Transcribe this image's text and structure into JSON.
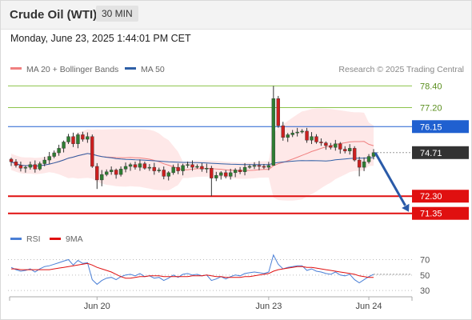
{
  "header": {
    "instrument": "Crude Oil (WTI)",
    "timeframe": "30 MIN",
    "datetime": "Monday, June 23, 2025 1:44:01 PM CET"
  },
  "colors": {
    "bull": "#2e7d32",
    "bear": "#cc1f1f",
    "ma20": "#f08080",
    "ma50": "#2e5fa6",
    "band_fill": "#fde0e0",
    "resistance": "#8bc34a",
    "pivot": "#2060d0",
    "support": "#e01010",
    "last_price": "#333333",
    "rsi": "#4a7fd6",
    "rsi_ma": "#e01010",
    "arrow": "#2a5aa8"
  },
  "chart_data": [
    {
      "type": "candlestick",
      "legend": [
        {
          "name": "MA 20 + Bollinger Bands",
          "color": "#f08080"
        },
        {
          "name": "MA 50",
          "color": "#2e5fa6"
        }
      ],
      "watermark": "Research © 2025 Trading Central",
      "ylim": [
        70.85,
        78.95
      ],
      "price_levels": [
        {
          "label": "78.40",
          "value": 78.4,
          "kind": "resistance"
        },
        {
          "label": "77.20",
          "value": 77.2,
          "kind": "resistance"
        },
        {
          "label": "76.15",
          "value": 76.15,
          "kind": "pivot"
        },
        {
          "label": "74.71",
          "value": 74.71,
          "kind": "last"
        },
        {
          "label": "72.30",
          "value": 72.3,
          "kind": "support"
        },
        {
          "label": "71.35",
          "value": 71.35,
          "kind": "support"
        }
      ],
      "x_ticks": [
        {
          "label": "Jun 20",
          "index": 18
        },
        {
          "label": "Jun 23",
          "index": 54
        },
        {
          "label": "Jun 24",
          "index": 75
        }
      ],
      "forecast": {
        "from_value": 74.71,
        "to_value": 71.35,
        "direction": "down"
      },
      "closes": [
        74.2,
        74.0,
        73.85,
        73.9,
        74.05,
        73.8,
        74.1,
        74.3,
        74.5,
        74.7,
        74.95,
        75.3,
        75.6,
        75.2,
        75.7,
        75.45,
        75.6,
        73.95,
        73.2,
        73.5,
        73.65,
        73.75,
        73.5,
        73.8,
        73.95,
        74.05,
        73.9,
        74.1,
        73.85,
        73.9,
        73.7,
        73.75,
        73.4,
        73.6,
        73.9,
        73.7,
        74.0,
        74.05,
        73.9,
        73.95,
        73.8,
        73.85,
        73.3,
        73.45,
        73.6,
        73.4,
        73.6,
        73.75,
        73.65,
        73.9,
        73.95,
        74.0,
        73.95,
        73.9,
        74.0,
        77.7,
        76.2,
        75.55,
        75.7,
        75.8,
        75.85,
        75.9,
        75.4,
        75.6,
        75.3,
        75.25,
        75.1,
        75.0,
        75.2,
        74.9,
        74.8,
        74.95,
        74.3,
        73.9,
        74.2,
        74.5,
        74.71
      ]
    },
    {
      "type": "line",
      "legend": [
        {
          "name": "RSI",
          "color": "#4a7fd6"
        },
        {
          "name": "9MA",
          "color": "#e01010"
        }
      ],
      "ylim": [
        25,
        85
      ],
      "y_ticks": [
        70,
        50,
        30
      ],
      "series": [
        {
          "name": "RSI",
          "values": [
            60,
            57,
            55,
            56,
            58,
            54,
            58,
            61,
            62,
            64,
            66,
            68,
            70,
            63,
            69,
            65,
            66,
            44,
            38,
            43,
            46,
            47,
            44,
            48,
            50,
            51,
            49,
            52,
            48,
            49,
            46,
            47,
            43,
            46,
            50,
            47,
            51,
            52,
            50,
            51,
            49,
            50,
            43,
            45,
            48,
            45,
            48,
            50,
            49,
            52,
            53,
            54,
            53,
            52,
            54,
            76,
            64,
            58,
            60,
            61,
            62,
            62,
            56,
            58,
            55,
            54,
            52,
            51,
            54,
            50,
            49,
            51,
            44,
            40,
            44,
            48,
            51
          ]
        },
        {
          "name": "9MA",
          "values": [
            58,
            58,
            57,
            57,
            57,
            57,
            57,
            57,
            57,
            58,
            59,
            60,
            61,
            62,
            63,
            64,
            65,
            63,
            60,
            58,
            56,
            54,
            51,
            48,
            46,
            46,
            47,
            48,
            48,
            49,
            49,
            49,
            48,
            48,
            48,
            48,
            48,
            48,
            49,
            49,
            49,
            50,
            49,
            48,
            48,
            47,
            47,
            47,
            47,
            48,
            48,
            49,
            50,
            51,
            52,
            55,
            57,
            58,
            59,
            60,
            61,
            61,
            60,
            60,
            59,
            58,
            57,
            56,
            55,
            54,
            53,
            52,
            51,
            49,
            48,
            47,
            47
          ]
        }
      ]
    }
  ]
}
